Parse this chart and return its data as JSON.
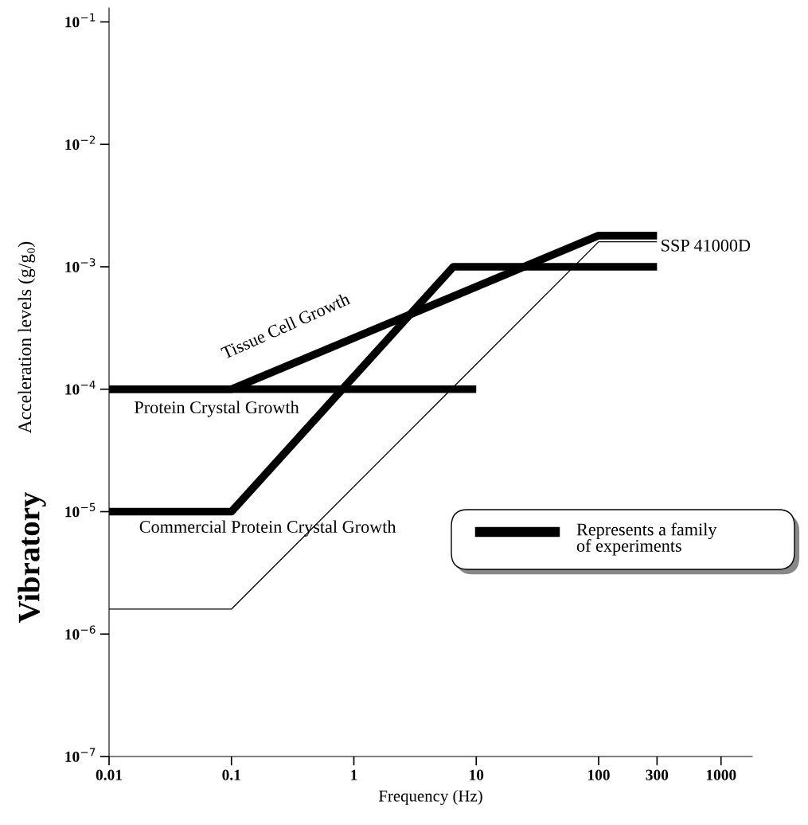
{
  "chart_data": {
    "type": "line",
    "xlabel": "Frequency (Hz)",
    "ylabel": "Acceleration levels (g/g₀)",
    "log": "xy",
    "grid": false,
    "legend": false,
    "marker": "none",
    "line_style": "solid",
    "xlim": [
      0.01,
      1800
    ],
    "xticks": [
      0.01,
      0.1,
      1,
      10,
      100,
      300,
      1000
    ],
    "ylim": [
      1e-07,
      0.13
    ],
    "yticks": [
      {
        "value": 1e-07,
        "label": "10$^{−7}$"
      },
      {
        "value": 1e-06,
        "label": "10$^{−6}$"
      },
      {
        "value": 1e-05,
        "label": "10$^{−5}$"
      },
      {
        "value": 0.0001,
        "label": "10$^{−4}$"
      },
      {
        "value": 0.001,
        "label": "10$^{−3}$"
      },
      {
        "value": 0.01,
        "label": "10$^{−2}$"
      },
      {
        "value": 0.1,
        "label": "10$^{−1}$"
      }
    ],
    "series": [
      {
        "name": "Protein Crystal Growth",
        "color": "#000000",
        "x": [
          0.01,
          10
        ],
        "values": [
          0.0001,
          0.0001
        ]
      },
      {
        "name": "Tissue Cell Growth",
        "color": "#000000",
        "x": [
          0.01,
          0.1,
          100,
          300
        ],
        "values": [
          0.0001,
          0.0001,
          0.0018,
          0.0018
        ]
      },
      {
        "name": "Commercial Protein Crystal Growth",
        "color": "#000000",
        "x": [
          0.01,
          0.1,
          6.5,
          300
        ],
        "values": [
          1e-05,
          1e-05,
          0.001,
          0.001
        ]
      },
      {
        "name": "SSP 41000D",
        "color": "#000000",
        "x": [
          0.01,
          0.1,
          100,
          300
        ],
        "values": [
          1.6e-06,
          1.6e-06,
          0.0016,
          0.0016
        ]
      }
    ],
    "annotations": [
      "Vibratory",
      "Represents a family\nof experiments"
    ]
  }
}
